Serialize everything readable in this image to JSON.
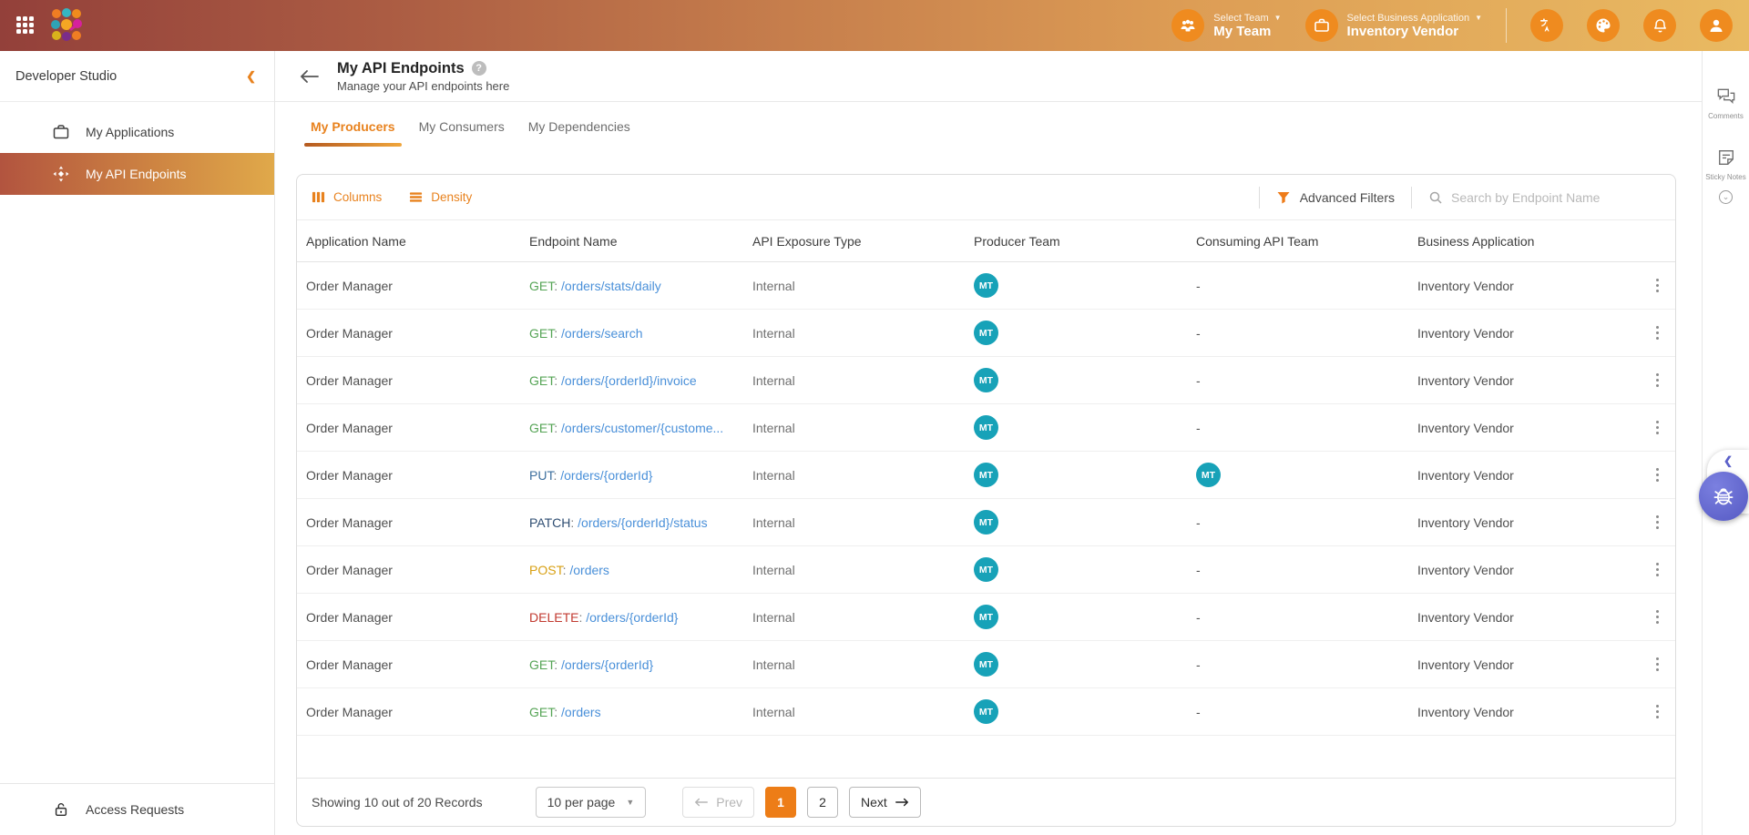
{
  "topbar": {
    "team_selector": {
      "label": "Select Team",
      "value": "My Team"
    },
    "business_app_selector": {
      "label": "Select Business Application",
      "value": "Inventory Vendor"
    }
  },
  "sidebar": {
    "title": "Developer Studio",
    "items": [
      {
        "label": "My Applications",
        "icon": "briefcase-icon",
        "active": false
      },
      {
        "label": "My API Endpoints",
        "icon": "api-hub-icon",
        "active": true
      }
    ],
    "footer_item": {
      "label": "Access Requests",
      "icon": "lock-icon"
    }
  },
  "page": {
    "title": "My API Endpoints",
    "subtitle": "Manage your API endpoints here",
    "tabs": [
      {
        "label": "My Producers",
        "active": true
      },
      {
        "label": "My Consumers",
        "active": false
      },
      {
        "label": "My Dependencies",
        "active": false
      }
    ]
  },
  "table": {
    "toolbar": {
      "columns_label": "Columns",
      "density_label": "Density",
      "advanced_filters_label": "Advanced Filters",
      "search_placeholder": "Search by Endpoint Name"
    },
    "columns": [
      "Application Name",
      "Endpoint Name",
      "API Exposure Type",
      "Producer Team",
      "Consuming API Team",
      "Business Application"
    ],
    "rows": [
      {
        "application": "Order Manager",
        "method": "GET",
        "path": "/orders/stats/daily",
        "exposure": "Internal",
        "producer_team": "MT",
        "consuming_team": "-",
        "business_application": "Inventory Vendor"
      },
      {
        "application": "Order Manager",
        "method": "GET",
        "path": "/orders/search",
        "exposure": "Internal",
        "producer_team": "MT",
        "consuming_team": "-",
        "business_application": "Inventory Vendor"
      },
      {
        "application": "Order Manager",
        "method": "GET",
        "path": "/orders/{orderId}/invoice",
        "exposure": "Internal",
        "producer_team": "MT",
        "consuming_team": "-",
        "business_application": "Inventory Vendor"
      },
      {
        "application": "Order Manager",
        "method": "GET",
        "path": "/orders/customer/{custome...",
        "exposure": "Internal",
        "producer_team": "MT",
        "consuming_team": "-",
        "business_application": "Inventory Vendor"
      },
      {
        "application": "Order Manager",
        "method": "PUT",
        "path": "/orders/{orderId}",
        "exposure": "Internal",
        "producer_team": "MT",
        "consuming_team": "MT",
        "business_application": "Inventory Vendor"
      },
      {
        "application": "Order Manager",
        "method": "PATCH",
        "path": "/orders/{orderId}/status",
        "exposure": "Internal",
        "producer_team": "MT",
        "consuming_team": "-",
        "business_application": "Inventory Vendor"
      },
      {
        "application": "Order Manager",
        "method": "POST",
        "path": "/orders",
        "exposure": "Internal",
        "producer_team": "MT",
        "consuming_team": "-",
        "business_application": "Inventory Vendor"
      },
      {
        "application": "Order Manager",
        "method": "DELETE",
        "path": "/orders/{orderId}",
        "exposure": "Internal",
        "producer_team": "MT",
        "consuming_team": "-",
        "business_application": "Inventory Vendor"
      },
      {
        "application": "Order Manager",
        "method": "GET",
        "path": "/orders/{orderId}",
        "exposure": "Internal",
        "producer_team": "MT",
        "consuming_team": "-",
        "business_application": "Inventory Vendor"
      },
      {
        "application": "Order Manager",
        "method": "GET",
        "path": "/orders",
        "exposure": "Internal",
        "producer_team": "MT",
        "consuming_team": "-",
        "business_application": "Inventory Vendor"
      }
    ]
  },
  "pagination": {
    "summary": "Showing 10 out of 20 Records",
    "page_size_value": "10 per page",
    "prev_label": "Prev",
    "pages": [
      "1",
      "2"
    ],
    "active_page": "1",
    "next_label": "Next"
  },
  "right_rail": {
    "comments_label": "Comments",
    "sticky_notes_label": "Sticky Notes"
  },
  "colors": {
    "accent": "#e8821e",
    "active_page_bg": "#ed7d17",
    "team_badge": "#17a2b8",
    "path_link": "#4a90d9",
    "methods": {
      "GET": "#56a456",
      "PUT": "#3d6f9e",
      "PATCH": "#2e4d72",
      "POST": "#d8a013",
      "DELETE": "#c23a30"
    }
  }
}
